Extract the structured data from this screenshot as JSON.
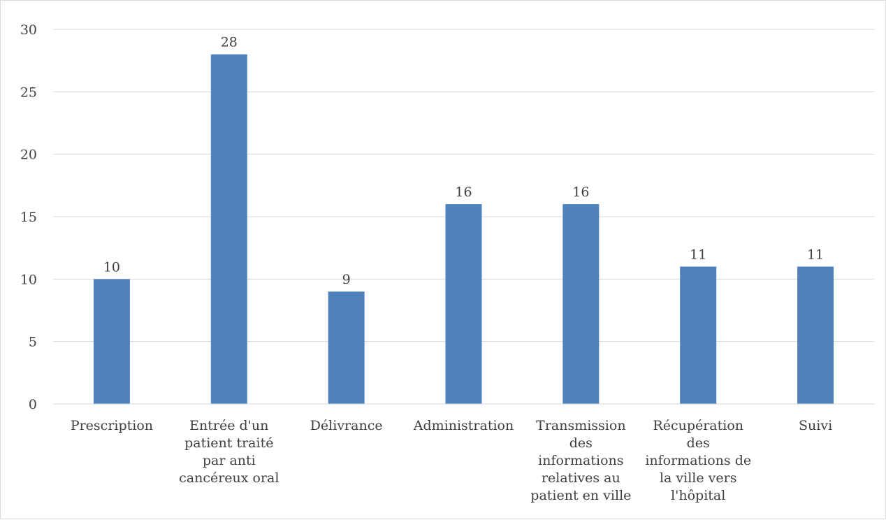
{
  "chart_data": {
    "type": "bar",
    "title": "",
    "xlabel": "",
    "ylabel": "",
    "categories": [
      [
        "Prescription"
      ],
      [
        "Entrée d'un",
        "patient traité",
        "par anti",
        "cancéreux oral"
      ],
      [
        "Délivrance"
      ],
      [
        "Administration"
      ],
      [
        "Transmission",
        "des",
        "informations",
        "relatives au",
        "patient en ville"
      ],
      [
        "Récupération",
        "des",
        "informations de",
        "la ville vers",
        "l'hôpital"
      ],
      [
        "Suivi"
      ]
    ],
    "values": [
      10,
      28,
      9,
      16,
      16,
      11,
      11
    ],
    "data_labels": [
      "10",
      "28",
      "9",
      "16",
      "16",
      "11",
      "11"
    ],
    "ylim": [
      0,
      30
    ],
    "yticks": [
      0,
      5,
      10,
      15,
      20,
      25,
      30
    ],
    "grid": true,
    "legend": "none",
    "bar_color": "#4f81bd"
  }
}
